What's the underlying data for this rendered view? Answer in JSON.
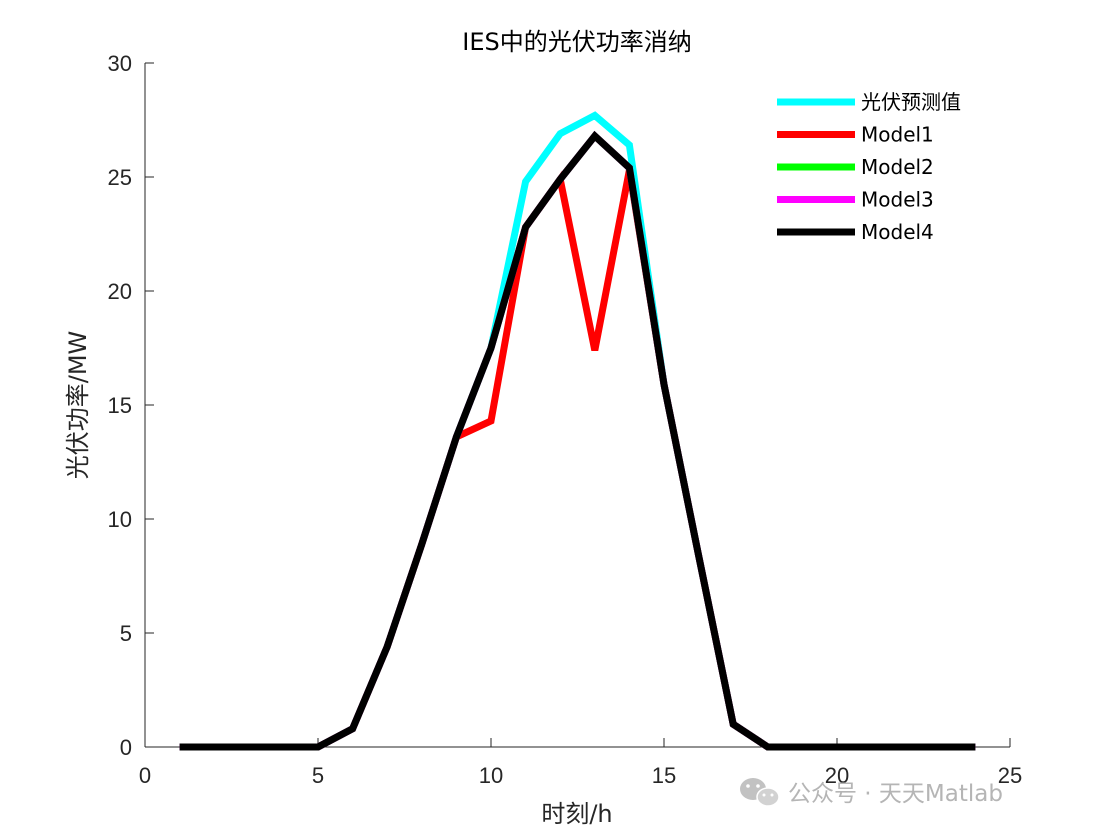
{
  "chart_data": {
    "type": "line",
    "title": "IES中的光伏功率消纳",
    "xlabel": "时刻/h",
    "ylabel": "光伏功率/MW",
    "xlim": [
      0,
      25
    ],
    "ylim": [
      0,
      30
    ],
    "xticks": [
      0,
      5,
      10,
      15,
      20,
      25
    ],
    "yticks": [
      0,
      5,
      10,
      15,
      20,
      25,
      30
    ],
    "grid": false,
    "legend_position": "top-right",
    "x": [
      1,
      2,
      3,
      4,
      5,
      6,
      7,
      8,
      9,
      10,
      11,
      12,
      13,
      14,
      15,
      16,
      17,
      18,
      19,
      20,
      21,
      22,
      23,
      24
    ],
    "series": [
      {
        "name": "光伏预测值",
        "color": "#00ffff",
        "values": [
          0,
          0,
          0,
          0,
          0,
          0.8,
          4.4,
          8.9,
          13.6,
          17.5,
          24.8,
          26.9,
          27.7,
          26.4,
          15.9,
          8.4,
          1.0,
          0,
          0,
          0,
          0,
          0,
          0,
          0
        ]
      },
      {
        "name": "Model1",
        "color": "#ff0000",
        "values": [
          0,
          0,
          0,
          0,
          0,
          0.8,
          4.4,
          8.9,
          13.6,
          14.3,
          22.8,
          24.9,
          17.4,
          25.3,
          15.9,
          8.4,
          1.0,
          0,
          0,
          0,
          0,
          0,
          0,
          0
        ]
      },
      {
        "name": "Model2",
        "color": "#00ff00",
        "values": [
          0,
          0,
          0,
          0,
          0,
          0.8,
          4.4,
          8.9,
          13.6,
          17.5,
          22.8,
          24.9,
          26.8,
          25.4,
          15.9,
          8.4,
          1.0,
          0,
          0,
          0,
          0,
          0,
          0,
          0
        ]
      },
      {
        "name": "Model3",
        "color": "#ff00ff",
        "values": [
          0,
          0,
          0,
          0,
          0,
          0.8,
          4.4,
          8.9,
          13.6,
          17.5,
          22.8,
          24.9,
          26.8,
          25.4,
          15.9,
          8.4,
          1.0,
          0,
          0,
          0,
          0,
          0,
          0,
          0
        ]
      },
      {
        "name": "Model4",
        "color": "#000000",
        "values": [
          0,
          0,
          0,
          0,
          0,
          0.8,
          4.4,
          8.9,
          13.6,
          17.5,
          22.8,
          24.9,
          26.8,
          25.4,
          15.9,
          8.4,
          1.0,
          0,
          0,
          0,
          0,
          0,
          0,
          0
        ]
      }
    ]
  },
  "watermark": {
    "text": "公众号 · 天天Matlab",
    "icon": "wechat-icon"
  }
}
